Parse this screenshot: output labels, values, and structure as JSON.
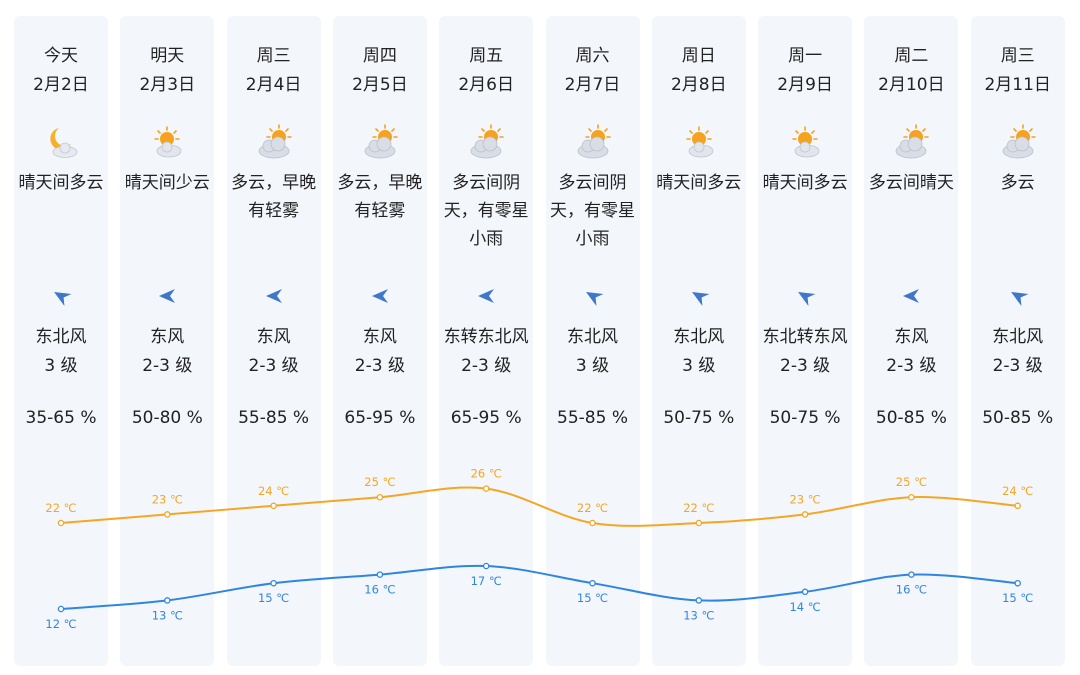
{
  "colors": {
    "high": "#f5a623",
    "low": "#2f86e0",
    "card": "#f3f6fb"
  },
  "days": [
    {
      "name": "今天",
      "date": "2月2日",
      "icon": "moon-cloud-icon",
      "desc": "晴天间多云",
      "wind_dir": "东北风",
      "wind_level": "3 级",
      "humidity": "35-65 %",
      "arrow": "northeast-wind-arrow-icon",
      "high": "22 ℃",
      "low": "12 ℃"
    },
    {
      "name": "明天",
      "date": "2月3日",
      "icon": "sun-cloud-icon",
      "desc": "晴天间少云",
      "wind_dir": "东风",
      "wind_level": "2-3 级",
      "humidity": "50-80 %",
      "arrow": "east-wind-arrow-icon",
      "high": "23 ℃",
      "low": "13 ℃"
    },
    {
      "name": "周三",
      "date": "2月4日",
      "icon": "partly-cloudy-icon",
      "desc": "多云，早晚\n有轻雾",
      "wind_dir": "东风",
      "wind_level": "2-3 级",
      "humidity": "55-85 %",
      "arrow": "east-wind-arrow-icon",
      "high": "24 ℃",
      "low": "15 ℃"
    },
    {
      "name": "周四",
      "date": "2月5日",
      "icon": "partly-cloudy-icon",
      "desc": "多云，早晚\n有轻雾",
      "wind_dir": "东风",
      "wind_level": "2-3 级",
      "humidity": "65-95 %",
      "arrow": "east-wind-arrow-icon",
      "high": "25 ℃",
      "low": "16 ℃"
    },
    {
      "name": "周五",
      "date": "2月6日",
      "icon": "partly-cloudy-icon",
      "desc": "多云间阴\n天，有零星\n小雨",
      "wind_dir": "东转东北风",
      "wind_level": "2-3 级",
      "humidity": "65-95 %",
      "arrow": "east-wind-arrow-icon",
      "high": "26 ℃",
      "low": "17 ℃"
    },
    {
      "name": "周六",
      "date": "2月7日",
      "icon": "partly-cloudy-icon",
      "desc": "多云间阴\n天，有零星\n小雨",
      "wind_dir": "东北风",
      "wind_level": "3 级",
      "humidity": "55-85 %",
      "arrow": "northeast-wind-arrow-icon",
      "high": "22 ℃",
      "low": "15 ℃"
    },
    {
      "name": "周日",
      "date": "2月8日",
      "icon": "sun-cloud-icon",
      "desc": "晴天间多云",
      "wind_dir": "东北风",
      "wind_level": "3 级",
      "humidity": "50-75 %",
      "arrow": "northeast-wind-arrow-icon",
      "high": "22 ℃",
      "low": "13 ℃"
    },
    {
      "name": "周一",
      "date": "2月9日",
      "icon": "sun-cloud-icon",
      "desc": "晴天间多云",
      "wind_dir": "东北转东风",
      "wind_level": "2-3 级",
      "humidity": "50-75 %",
      "arrow": "northeast-wind-arrow-icon",
      "high": "23 ℃",
      "low": "14 ℃"
    },
    {
      "name": "周二",
      "date": "2月10日",
      "icon": "partly-cloudy-icon",
      "desc": "多云间晴天",
      "wind_dir": "东风",
      "wind_level": "2-3 级",
      "humidity": "50-85 %",
      "arrow": "east-wind-arrow-icon",
      "high": "25 ℃",
      "low": "16 ℃"
    },
    {
      "name": "周三",
      "date": "2月11日",
      "icon": "partly-cloudy-icon",
      "desc": "多云",
      "wind_dir": "东北风",
      "wind_level": "2-3 级",
      "humidity": "50-85 %",
      "arrow": "northeast-wind-arrow-icon",
      "high": "24 ℃",
      "low": "15 ℃"
    }
  ],
  "chart_data": {
    "type": "line",
    "categories": [
      "2月2日",
      "2月3日",
      "2月4日",
      "2月5日",
      "2月6日",
      "2月7日",
      "2月8日",
      "2月9日",
      "2月10日",
      "2月11日"
    ],
    "series": [
      {
        "values": [
          22,
          23,
          24,
          25,
          26,
          22,
          22,
          23,
          25,
          24
        ]
      },
      {
        "values": [
          12,
          13,
          15,
          16,
          17,
          15,
          13,
          14,
          16,
          15
        ]
      }
    ],
    "unit": "℃"
  }
}
